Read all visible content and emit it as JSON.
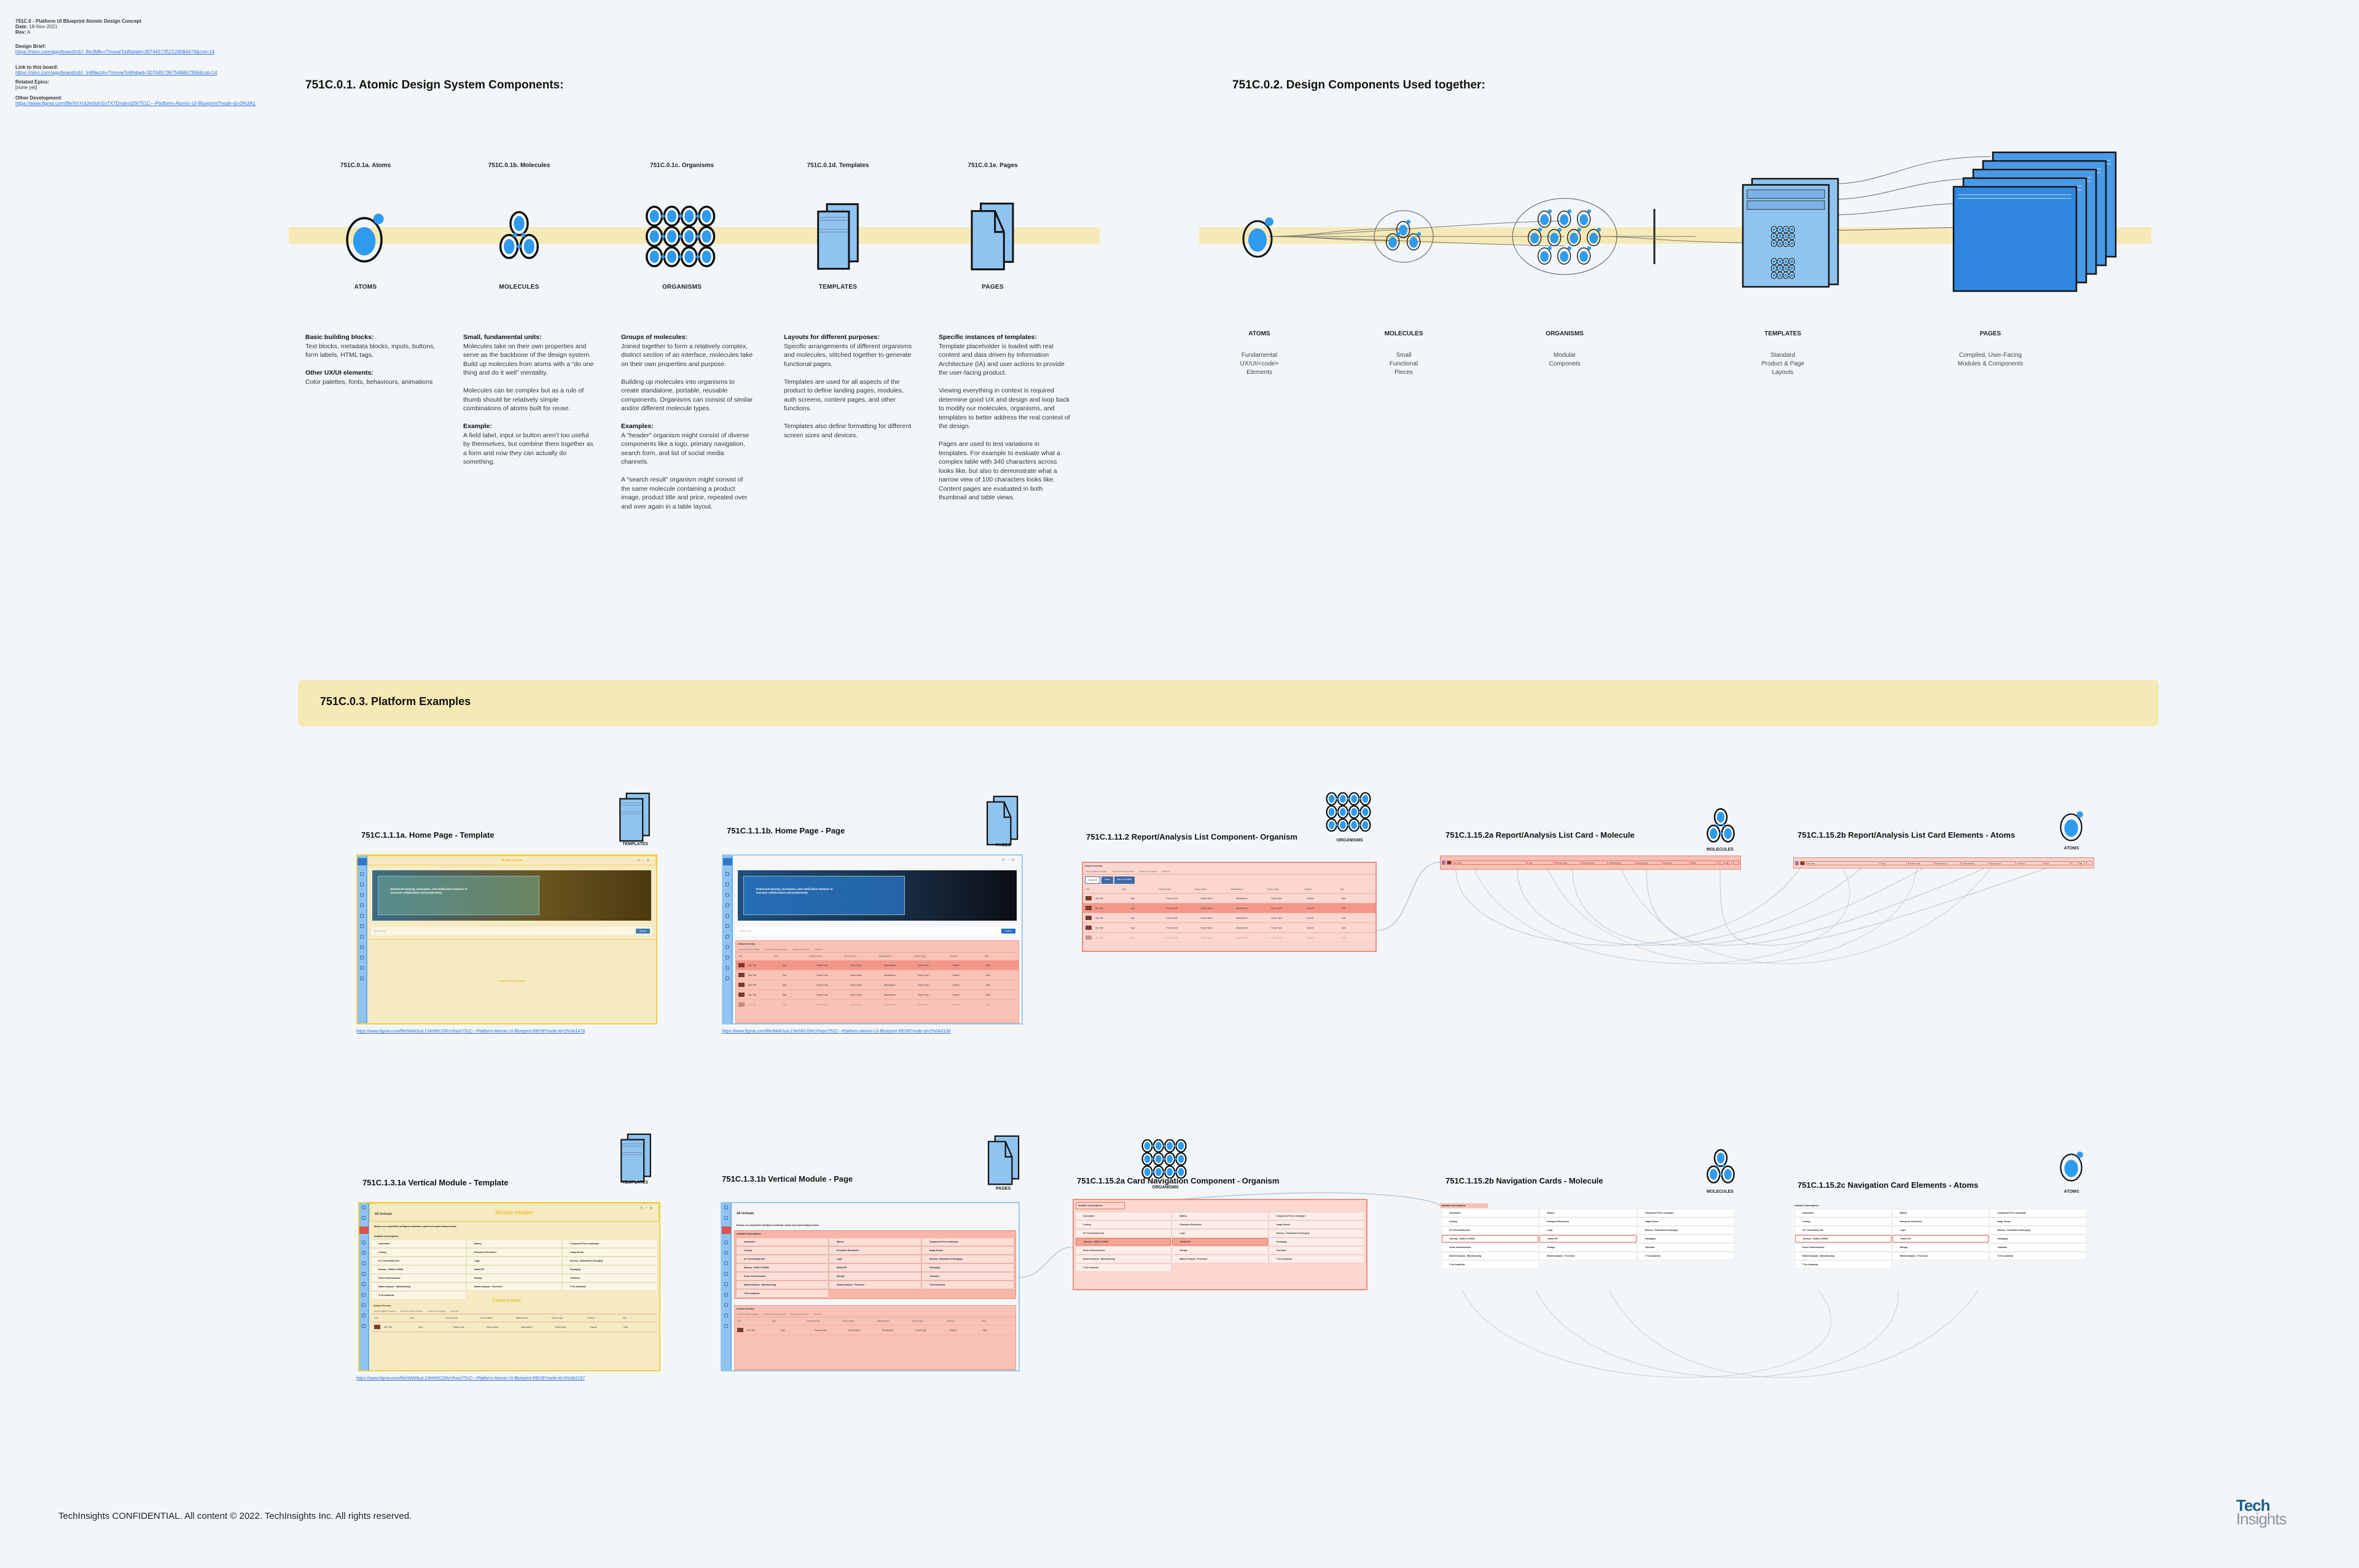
{
  "doc": {
    "title": "751C.0 - Platform UI Blueprint Atomic Design Concept",
    "date_label": "Date:",
    "date": "18-Nov-2021",
    "rev_label": "Rev:",
    "rev": "A",
    "brief_label": "Design Brief:",
    "brief_link": "https://miro.com/app/board/o9J_lfwJMlk=/?moveToWidget=3074457352124584476&cot=14",
    "board_label": "Link to this board:",
    "board_link": "https://miro.com/app/board/o9J_ln8Nwz4=/?moveToWidget=3074457367546867306&cot=14",
    "epics_label": "Related Epics:",
    "epics": "[none yet]",
    "other_label": "Other Development:",
    "other_link": "https://www.figma.com/file/VxYuUm0ohSoTX7Dnahot29/751C---Platform-Atomic-UI-Blueprint?node-id=0%3A1"
  },
  "section1": {
    "title": "751C.0.1. Atomic Design System Components:",
    "stages": [
      {
        "code": "751C.0.1a. Atoms",
        "label": "ATOMS",
        "icon": "atom-icon",
        "blocks": [
          {
            "heading": "Basic building blocks:",
            "text": "Text blocks, metadata blocks, inputs, buttons, form labels, HTML tags."
          },
          {
            "heading": "Other UX/UI elements:",
            "text": "Color palettes, fonts, behaviours, animations"
          }
        ]
      },
      {
        "code": "751C.0.1b. Molecules",
        "label": "MOLECULES",
        "icon": "molecule-icon",
        "blocks": [
          {
            "heading": "Small, fundamental units:",
            "text": "Molecules take on their own properties and serve as the backbone of the design system. Build up molecules from atoms with a “do one thing and do it well” mentality."
          },
          {
            "heading": "",
            "text": "Molecules can be complex but as a rule of thumb should be relatively simple combinations of atoms built for reuse."
          },
          {
            "heading": "Example:",
            "text": "A field label, input or button aren’t too useful by themselves, but combine them together as a form and now they can actually do something."
          }
        ]
      },
      {
        "code": "751C.0.1c. Organisms",
        "label": "ORGANISMS",
        "icon": "organism-icon",
        "blocks": [
          {
            "heading": "Groups of molecules:",
            "text": "Joined together to form a relatively complex, distinct section of an interface, molecules take on their own properties and purpose."
          },
          {
            "heading": "",
            "text": "Building up molecules into organisms to create standalone, portable, reusable components.  Organisms can consist of similar and/or different molecule types."
          },
          {
            "heading": "Examples:",
            "text": "A \"header\" organism might consist of diverse components like a logo, primary navigation, search form, and list of social media channels."
          },
          {
            "heading": "",
            "text": "A “search result” organism might consist of the same molecule containing a product image, product title and price, repeated over and over again in a table layout."
          }
        ]
      },
      {
        "code": "751C.0.1d. Templates",
        "label": "TEMPLATES",
        "icon": "templates-icon",
        "blocks": [
          {
            "heading": "Layouts for different purposes:",
            "text": "Specific arrangements of different organisms and molecules, stitched together to generate functional pages."
          },
          {
            "heading": "",
            "text": "Templates are used for all aspects of the product to define landing pages, modules, auth screens, content pages, and other functions."
          },
          {
            "heading": "",
            "text": "Templates also define formatting for different screen sizes and devices."
          }
        ]
      },
      {
        "code": "751C.0.1e. Pages",
        "label": "PAGES",
        "icon": "pages-icon",
        "blocks": [
          {
            "heading": "Specific instances of templates:",
            "text": "Template placeholder is loaded with real content and data driven by Information Architecture (IA) and user actions to provide the user-facing product."
          },
          {
            "heading": "",
            "text": "Viewing everything in context is required determine good UX and design and loop back to modify our molecules, organisms, and templates to better address the real context of the design."
          },
          {
            "heading": "",
            "text": "Pages are used to test variations in templates.  For example to evaluate what a complex table with 340 characters across  looks like, but also to demonstrate what a narrow view of 100 characters looks like.  Content pages are evaluated in both thumbnail and table views."
          }
        ]
      }
    ]
  },
  "section2": {
    "title": "751C.0.2. Design Components Used together:",
    "stages": [
      {
        "label": "ATOMS",
        "desc": [
          "Fundamental",
          "UX/UI/<code>",
          "Elements"
        ]
      },
      {
        "label": "MOLECULES",
        "desc": [
          "Small",
          "Functional",
          "Pieces"
        ]
      },
      {
        "label": "ORGANISMS",
        "desc": [
          "Modular",
          "Componets"
        ]
      },
      {
        "label": "TEMPLATES",
        "desc": [
          "Standard",
          "Product & Page",
          "Layouts"
        ]
      },
      {
        "label": "PAGES",
        "desc": [
          "Compiled, User-Facing",
          "Modules & Components"
        ]
      }
    ]
  },
  "section3": {
    "title": "751C.0.3.  Platform Examples",
    "examples": [
      {
        "title": "751C.1.1.1a. Home Page - Template",
        "kind": "TEMPLATES",
        "link": "https://www.figma.com/file/IMAl3yxLCMrhRCGRzVhxjn/751C---Platform-Atomic-UI-Blueprint-REVB?node-id=2%3A1478"
      },
      {
        "title": "751C.1.1.1b. Home Page - Page",
        "kind": "PAGES",
        "link": "https://www.figma.com/file/IMAl3yxLCMrhRCGRzVhxjn/751C---Platform-Atomic-UI-Blueprint-REVB?node-id=2%3A3138"
      },
      {
        "title": "751C.1.11.2 Report/Analysis List Component- Organism",
        "kind": "ORGANISMS"
      },
      {
        "title": "751C.1.15.2a Report/Analysis List Card - Molecule",
        "kind": "MOLECULES"
      },
      {
        "title": "751C.1.15.2b Report/Analysis List Card Elements -  Atoms",
        "kind": "ATOMS"
      },
      {
        "title": "751C.1.3.1a Vertical Module - Template",
        "kind": "TEMPLATES",
        "link": "https://www.figma.com/file/IMAl3yxLCMrhRCGRzVhxjn/751C---Platform-Atomic-UI-Blueprint-REVB?node-id=3%3A2197"
      },
      {
        "title": "751C.1.3.1b Vertical Module - Page",
        "kind": "PAGES"
      },
      {
        "title": "751C.1.15.2a Card Navigation Component - Organism",
        "kind": "ORGANISMS"
      },
      {
        "title": "751C.1.15.2b  Navigation Cards - Molecule",
        "kind": "MOLECULES"
      },
      {
        "title": "751C.1.15.2c Navigation Card Elements - Atoms",
        "kind": "ATOMS"
      }
    ]
  },
  "screens": {
    "module_header": "Module Header",
    "hero_text": "Enhanced sharing, annotation, and notification features to increase collaboration and productivity",
    "search_placeholder": "Search Term",
    "search_button": "Search",
    "clear_search": "Clear Search",
    "lower_content": "Lower Content Area",
    "content_area": "Content Area",
    "analysis_summary": "Analysis Summary",
    "view_all": "View All",
    "tabs": [
      "Newly Available Analysis",
      "Recently Viewed Analysis",
      "Analysis in Progress",
      "Favorites"
    ],
    "actions": [
      "Select All",
      "Share",
      "Add to Favorites"
    ],
    "columns": [
      "Title",
      "Type",
      "Product Code",
      "Device Name",
      "Manufacturer",
      "Device Type",
      "Channel",
      "Date"
    ],
    "row": [
      "Item Title",
      "Type",
      "Product Code",
      "Device Name",
      "Manufacturer",
      "Device Type",
      "Channel",
      "Date"
    ],
    "all_verticals": "All Verticals",
    "browse_text": "Browse our competitive intelligence teardown reports and expert analysis below",
    "available_subscriptions": "Available Subscriptions",
    "subscriptions": [
      "Automotive",
      "Battery",
      "Component Price Landscape",
      "Cooling",
      "Enterprise Electronics",
      "Image Sensor",
      "IoT Connectivity SoC",
      "Logic",
      "Memory - Embedded & Emerging",
      "Memory - NAND & DRAM",
      "Mobile RF",
      "Packaging",
      "Power Semiconductor",
      "Storage",
      "Teardown",
      "Market Analysis - Manufacturing",
      "Market Analysis - Processor",
      "TI for Academia",
      "TI for Academia"
    ]
  },
  "footer": {
    "text": "TechInsights CONFIDENTIAL. All content © 2022. TechInsights Inc. All rights reserved."
  },
  "logo": {
    "line1": "Tech",
    "line2": "Insights"
  },
  "colors": {
    "background": "#f3f6f9",
    "band": "#f5e9b6",
    "atom_blue": "#2e9bef",
    "doc_blue": "#90c4f0",
    "highlight_red": "#f6c2b8",
    "template_yellow": "#f6eac3"
  }
}
